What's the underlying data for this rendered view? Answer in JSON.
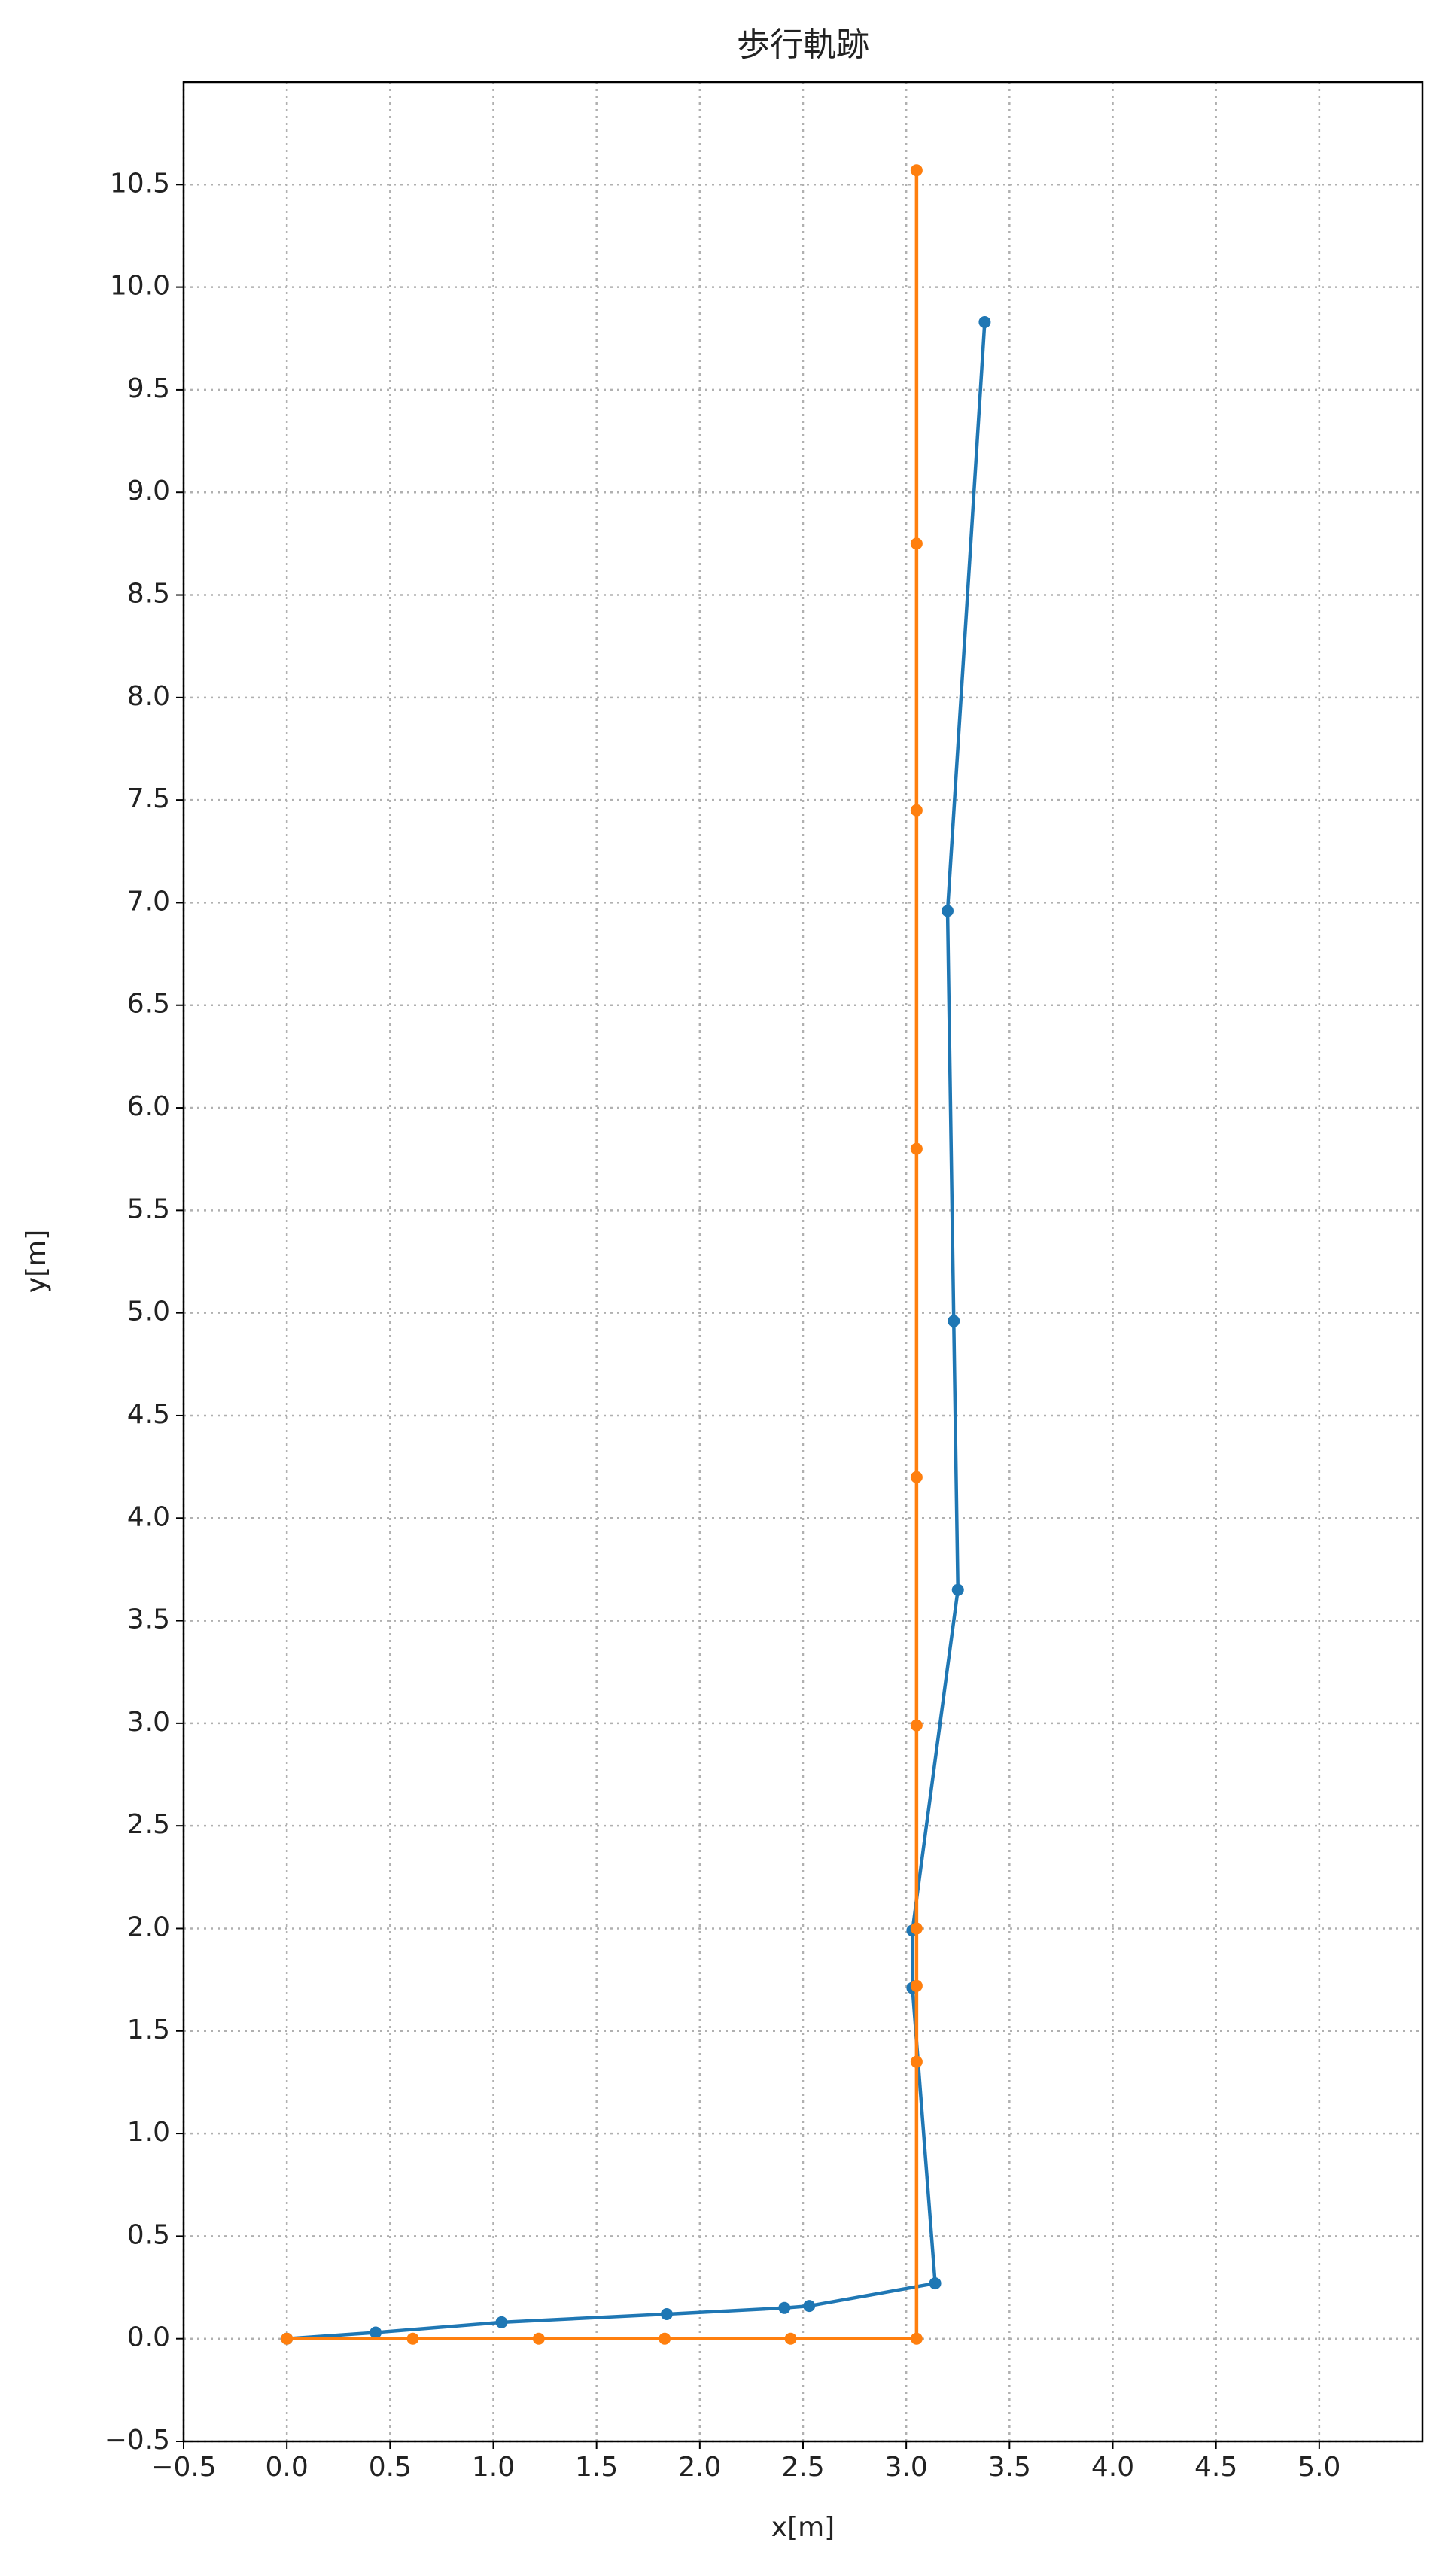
{
  "chart_data": {
    "type": "line",
    "title": "歩行軌跡",
    "x_label": "x[m]",
    "y_label": "y[m]",
    "xlim": [
      -0.5,
      5.5
    ],
    "ylim": [
      -0.5,
      11.0
    ],
    "xticks": [
      {
        "value": -0.5,
        "label": "−0.5"
      },
      {
        "value": 0,
        "label": "0.0"
      },
      0.5,
      {
        "value": 1,
        "label": "1.0"
      },
      1.5,
      {
        "value": 2,
        "label": "2.0"
      },
      2.5,
      {
        "value": 3,
        "label": "3.0"
      },
      3.5,
      {
        "value": 4,
        "label": "4.0"
      },
      4.5,
      {
        "value": 5,
        "label": "5.0"
      }
    ],
    "yticks": [
      {
        "value": -0.5,
        "label": "−0.5"
      },
      {
        "value": 0,
        "label": "0.0"
      },
      0.5,
      {
        "value": 1,
        "label": "1.0"
      },
      1.5,
      {
        "value": 2,
        "label": "2.0"
      },
      2.5,
      {
        "value": 3,
        "label": "3.0"
      },
      3.5,
      {
        "value": 4,
        "label": "4.0"
      },
      4.5,
      {
        "value": 5,
        "label": "5.0"
      },
      5.5,
      {
        "value": 6,
        "label": "6.0"
      },
      6.5,
      {
        "value": 7,
        "label": "7.0"
      },
      7.5,
      {
        "value": 8,
        "label": "8.0"
      },
      8.5,
      {
        "value": 9,
        "label": "9.0"
      },
      9.5,
      {
        "value": 10,
        "label": "10.0"
      },
      10.5
    ],
    "grid": true,
    "series": [
      {
        "color": "#1f77b4",
        "x": [
          0,
          0.43,
          1.04,
          1.84,
          2.41,
          2.53,
          3.14,
          3.03,
          3.03,
          3.25,
          3.23,
          3.2,
          3.38
        ],
        "values": [
          0,
          0.03,
          0.08,
          0.12,
          0.15,
          0.16,
          0.27,
          1.71,
          1.99,
          3.65,
          4.96,
          6.96,
          9.83
        ]
      },
      {
        "color": "#ff7f0e",
        "x": [
          0,
          0.61,
          1.22,
          1.83,
          2.44,
          3.05,
          3.05,
          3.05,
          3.05,
          3.05,
          3.05,
          3.05,
          3.05,
          3.05,
          3.05
        ],
        "values": [
          0,
          0,
          0,
          0,
          0,
          0,
          1.35,
          1.72,
          2.0,
          2.99,
          4.2,
          5.8,
          7.45,
          8.75,
          10.57
        ]
      }
    ]
  }
}
